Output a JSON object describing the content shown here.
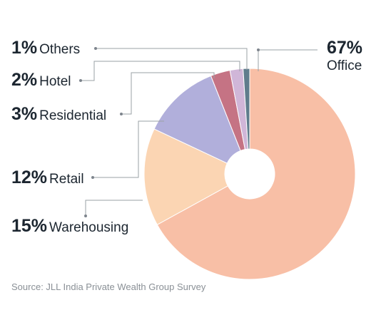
{
  "chart_data": {
    "type": "pie",
    "donut": true,
    "start_angle_deg": 0,
    "direction": "clockwise",
    "slices": [
      {
        "label": "Office",
        "value": 67,
        "pct_text": "67%",
        "color": "#f8bfa6"
      },
      {
        "label": "Warehousing",
        "value": 15,
        "pct_text": "15%",
        "color": "#fbd5b3"
      },
      {
        "label": "Retail",
        "value": 12,
        "pct_text": "12%",
        "color": "#b1afdb"
      },
      {
        "label": "Residential",
        "value": 3,
        "pct_text": "3%",
        "color": "#c57384"
      },
      {
        "label": "Hotel",
        "value": 2,
        "pct_text": "2%",
        "color": "#d0b6d8"
      },
      {
        "label": "Others",
        "value": 1,
        "pct_text": "1%",
        "color": "#5f7c8c"
      }
    ],
    "source": "Source: JLL India Private Wealth Group Survey"
  }
}
